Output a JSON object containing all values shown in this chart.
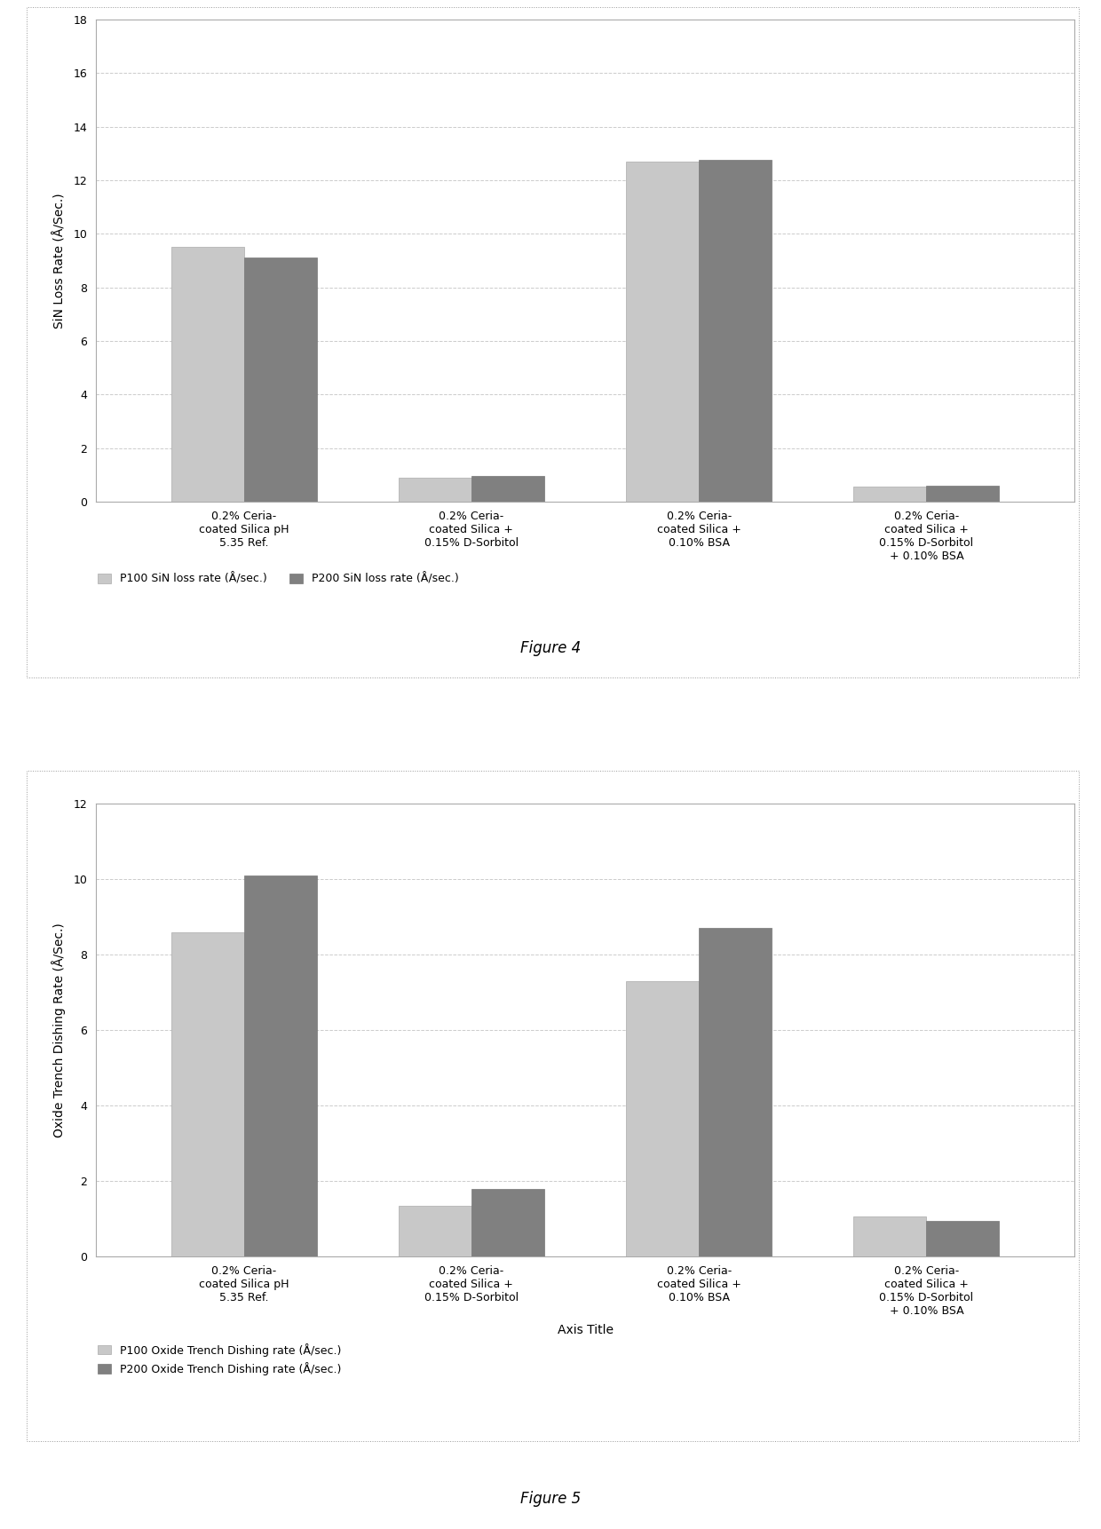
{
  "fig4": {
    "title": "Figure 4",
    "ylabel": "SiN Loss Rate (Å/Sec.)",
    "ylim": [
      0,
      18.0
    ],
    "yticks": [
      0.0,
      2.0,
      4.0,
      6.0,
      8.0,
      10.0,
      12.0,
      14.0,
      16.0,
      18.0
    ],
    "categories": [
      "0.2% Ceria-\ncoated Silica pH\n5.35 Ref.",
      "0.2% Ceria-\ncoated Silica +\n0.15% D-Sorbitol",
      "0.2% Ceria-\ncoated Silica +\n0.10% BSA",
      "0.2% Ceria-\ncoated Silica +\n0.15% D-Sorbitol\n+ 0.10% BSA"
    ],
    "p100_values": [
      9.5,
      0.9,
      12.7,
      0.55
    ],
    "p200_values": [
      9.1,
      0.95,
      12.75,
      0.6
    ],
    "p100_color": "#c8c8c8",
    "p200_color": "#808080",
    "p100_label": "P100 SiN loss rate (Å/sec.)",
    "p200_label": "P200 SiN loss rate (Å/sec.)"
  },
  "fig5": {
    "title": "Figure 5",
    "ylabel": "Oxide Trench Dishing Rate (Å/Sec.)",
    "xlabel": "Axis Title",
    "ylim": [
      0,
      12.0
    ],
    "yticks": [
      0.0,
      2.0,
      4.0,
      6.0,
      8.0,
      10.0,
      12.0
    ],
    "categories": [
      "0.2% Ceria-\ncoated Silica pH\n5.35 Ref.",
      "0.2% Ceria-\ncoated Silica +\n0.15% D-Sorbitol",
      "0.2% Ceria-\ncoated Silica +\n0.10% BSA",
      "0.2% Ceria-\ncoated Silica +\n0.15% D-Sorbitol\n+ 0.10% BSA"
    ],
    "p100_values": [
      8.6,
      1.35,
      7.3,
      1.05
    ],
    "p200_values": [
      10.1,
      1.8,
      8.7,
      0.95
    ],
    "p100_color": "#c8c8c8",
    "p200_color": "#808080",
    "p100_label": "P100 Oxide Trench Dishing rate (Å/sec.)",
    "p200_label": "P200 Oxide Trench Dishing rate (Å/sec.)"
  },
  "background_color": "#ffffff",
  "chart_bg": "#ffffff",
  "grid_color": "#cccccc",
  "bar_width": 0.32,
  "font_size_tick": 9,
  "font_size_label": 10,
  "font_size_title": 12,
  "font_size_legend": 9
}
